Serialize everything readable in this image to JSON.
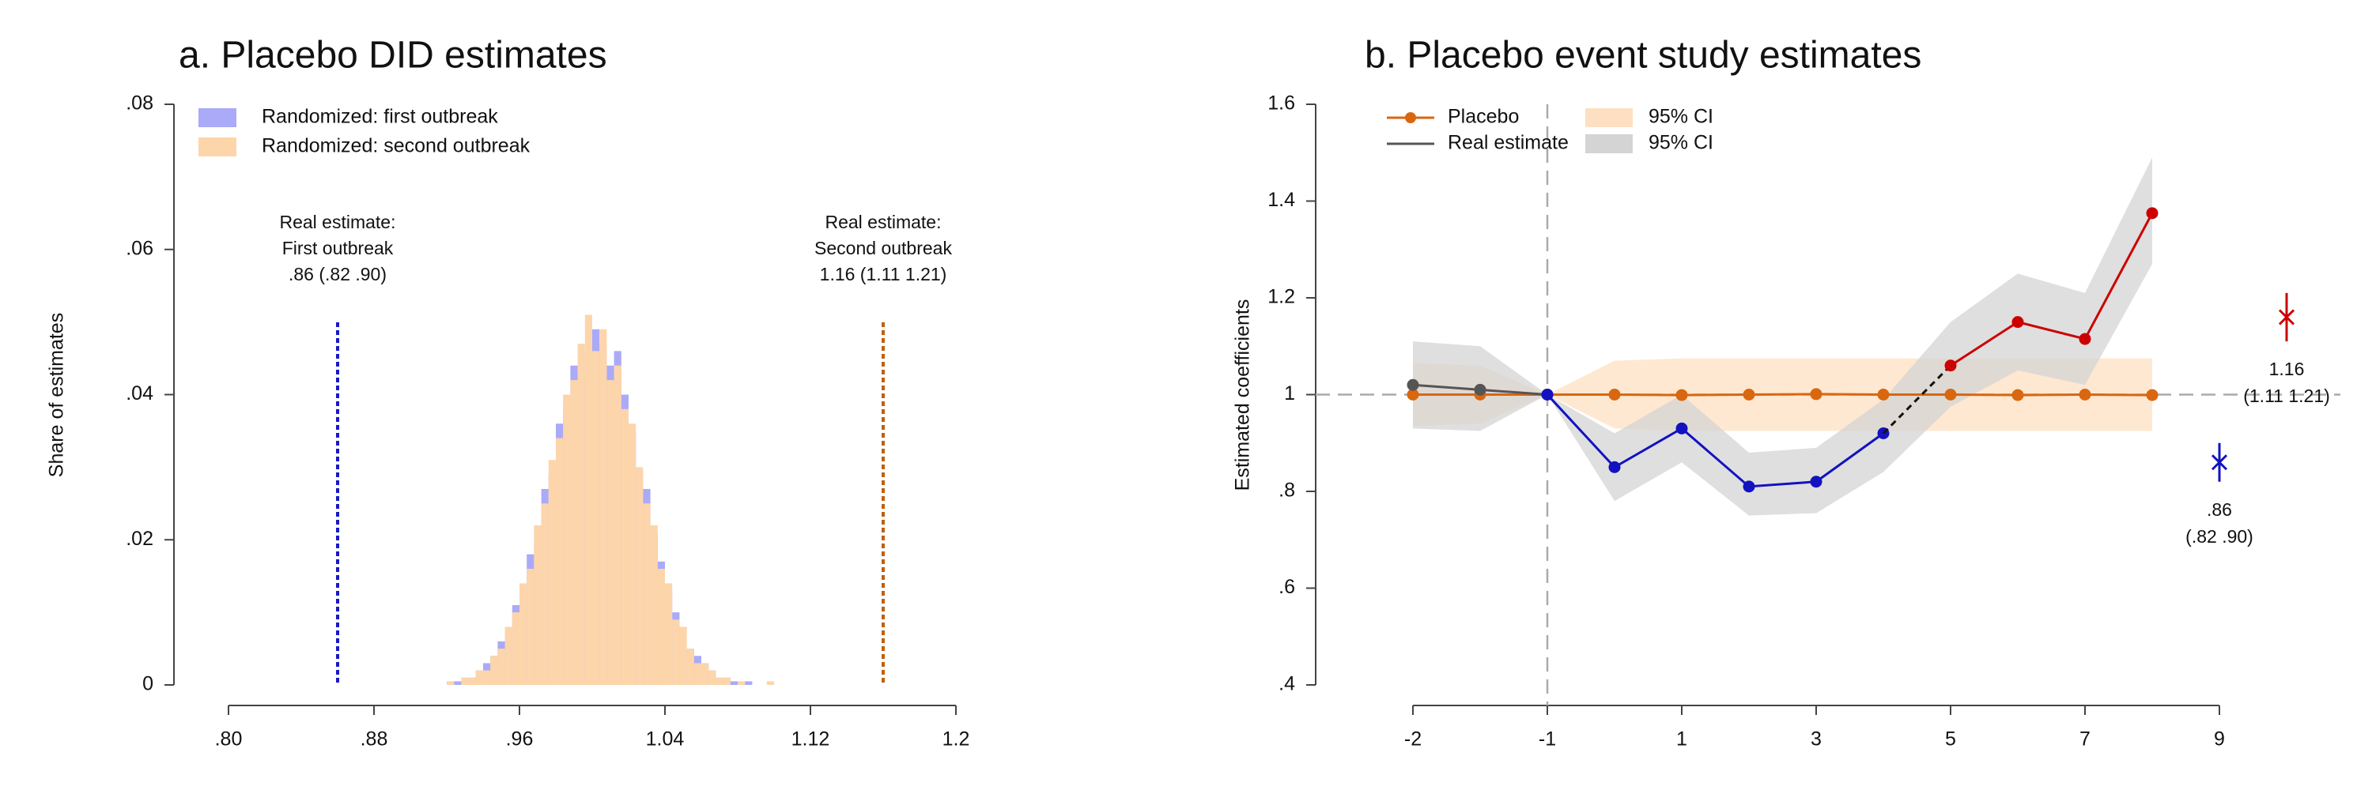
{
  "chart_data": [
    {
      "type": "histogram",
      "title": "a. Placebo DID estimates",
      "ylabel": "Share of estimates",
      "bins": [
        0.92,
        0.924,
        0.928,
        0.932,
        0.936,
        0.94,
        0.944,
        0.948,
        0.952,
        0.956,
        0.96,
        0.964,
        0.968,
        0.972,
        0.976,
        0.98,
        0.984,
        0.988,
        0.992,
        0.996,
        1.0,
        1.004,
        1.008,
        1.012,
        1.016,
        1.02,
        1.024,
        1.028,
        1.032,
        1.036,
        1.04,
        1.044,
        1.048,
        1.052,
        1.056,
        1.06,
        1.064,
        1.068,
        1.072,
        1.076,
        1.08,
        1.084,
        1.088,
        1.092,
        1.096,
        1.1,
        1.104
      ],
      "series": [
        {
          "name": "Randomized: first outbreak",
          "color": "#aaaaf8",
          "values": [
            0,
            0.0005,
            0.001,
            0.001,
            0.002,
            0.003,
            0.004,
            0.006,
            0.007,
            0.011,
            0.012,
            0.018,
            0.02,
            0.027,
            0.029,
            0.036,
            0.038,
            0.044,
            0.043,
            0.046,
            0.049,
            0.047,
            0.044,
            0.046,
            0.04,
            0.035,
            0.029,
            0.027,
            0.021,
            0.017,
            0.013,
            0.01,
            0.008,
            0.005,
            0.004,
            0.003,
            0.002,
            0.001,
            0.001,
            0.0005,
            0,
            0.0005,
            0,
            0,
            0,
            0
          ]
        },
        {
          "name": "Randomized: second outbreak",
          "color": "#fdd5ab",
          "values": [
            0.0005,
            0,
            0.001,
            0.001,
            0.002,
            0.002,
            0.004,
            0.005,
            0.008,
            0.01,
            0.014,
            0.016,
            0.022,
            0.025,
            0.031,
            0.034,
            0.04,
            0.042,
            0.047,
            0.051,
            0.046,
            0.049,
            0.042,
            0.044,
            0.038,
            0.036,
            0.03,
            0.025,
            0.022,
            0.016,
            0.014,
            0.009,
            0.008,
            0.005,
            0.003,
            0.003,
            0.002,
            0.001,
            0.001,
            0,
            0.0005,
            0,
            0,
            0,
            0.0005,
            0
          ]
        }
      ],
      "xlim": [
        0.8,
        1.2
      ],
      "xticks": [
        {
          "value": 0.8,
          "label": ".80"
        },
        {
          "value": 0.88,
          "label": ".88"
        },
        {
          "value": 0.96,
          "label": ".96"
        },
        1.04,
        1.12,
        1.2
      ],
      "ylim": [
        0,
        0.08
      ],
      "yticks": [
        0,
        {
          "value": 0.02,
          "label": ".02"
        },
        {
          "value": 0.04,
          "label": ".04"
        },
        {
          "value": 0.06,
          "label": ".06"
        },
        {
          "value": 0.08,
          "label": ".08"
        }
      ],
      "legend": "top-left",
      "ref_lines": [
        {
          "value": 0.86,
          "color": "#1818c8",
          "label": [
            "Real estimate:",
            "First outbreak",
            ".86 (.82 .90)"
          ]
        },
        {
          "value": 1.16,
          "color": "#c0600c",
          "label": [
            "Real estimate:",
            "Second outbreak",
            "1.16 (1.11 1.21)"
          ]
        }
      ]
    },
    {
      "type": "line",
      "title": "b. Placebo event study estimates",
      "ylabel": "Estimated coefficients",
      "categories": [
        "-2",
        null,
        "-1",
        null,
        "1",
        null,
        "3",
        null,
        "5",
        null,
        "7",
        null,
        "9",
        null
      ],
      "ylim": [
        0.4,
        1.6
      ],
      "yticks": [
        {
          "value": 0.4,
          "label": ".4"
        },
        {
          "value": 0.6,
          "label": ".6"
        },
        {
          "value": 0.8,
          "label": ".8"
        },
        1,
        1.2,
        1.4,
        1.6
      ],
      "hline": 1,
      "vline": "-1",
      "legend": "top-left",
      "series": [
        {
          "name": "Placebo",
          "color": "#d9670f",
          "values": [
            1,
            1,
            1,
            1,
            0.999,
            1,
            1.001,
            1,
            1,
            0.999,
            1,
            0.999,
            null,
            null
          ],
          "ci_name": "95% CI",
          "ci_color": "#fde0c2",
          "ci_lower": [
            0.935,
            0.94,
            1,
            0.93,
            0.925,
            0.925,
            0.925,
            0.925,
            0.925,
            0.925,
            0.925,
            0.925,
            null,
            null
          ],
          "ci_upper": [
            1.065,
            1.06,
            1,
            1.07,
            1.075,
            1.075,
            1.075,
            1.075,
            1.075,
            1.075,
            1.075,
            1.075,
            null,
            null
          ]
        },
        {
          "name": "Real estimate",
          "color": "#555555",
          "values": [
            1.02,
            1.01,
            1,
            null,
            null,
            null,
            null,
            null,
            null,
            null,
            null,
            null,
            null,
            null
          ],
          "ci_name": "95% CI",
          "ci_color": "#d4d4d4",
          "ci_lower": [
            0.93,
            0.925,
            1,
            0.78,
            0.86,
            0.75,
            0.755,
            0.84,
            0.975,
            1.05,
            1.02,
            1.27,
            null,
            null
          ],
          "ci_upper": [
            1.11,
            1.1,
            1,
            0.92,
            1.0,
            0.88,
            0.89,
            0.99,
            1.15,
            1.25,
            1.21,
            1.49,
            null,
            null
          ]
        },
        {
          "color": "#1212c0",
          "values": [
            null,
            null,
            1,
            0.85,
            0.93,
            0.81,
            0.82,
            0.92,
            null,
            null,
            null,
            null,
            null,
            null
          ]
        },
        {
          "color": "#cc0000",
          "connect_previous": true,
          "values": [
            null,
            null,
            null,
            null,
            null,
            null,
            null,
            null,
            1.06,
            1.15,
            1.115,
            1.375,
            null,
            null
          ]
        }
      ],
      "estimates": [
        {
          "color": "#1212c0",
          "values": [
            null,
            null,
            null,
            null,
            null,
            null,
            null,
            null,
            null,
            null,
            null,
            null,
            0.86,
            null
          ],
          "lower": [
            null,
            null,
            null,
            null,
            null,
            null,
            null,
            null,
            null,
            null,
            null,
            null,
            0.82,
            null
          ],
          "upper": [
            null,
            null,
            null,
            null,
            null,
            null,
            null,
            null,
            null,
            null,
            null,
            null,
            0.9,
            null
          ],
          "value_labels": [
            null,
            null,
            null,
            null,
            null,
            null,
            null,
            null,
            null,
            null,
            null,
            null,
            ".86",
            null
          ],
          "ci_labels": [
            null,
            null,
            null,
            null,
            null,
            null,
            null,
            null,
            null,
            null,
            null,
            null,
            "(.82 .90)",
            null
          ]
        },
        {
          "color": "#cc0000",
          "values": [
            null,
            null,
            null,
            null,
            null,
            null,
            null,
            null,
            null,
            null,
            null,
            null,
            null,
            1.16
          ],
          "lower": [
            null,
            null,
            null,
            null,
            null,
            null,
            null,
            null,
            null,
            null,
            null,
            null,
            null,
            1.11
          ],
          "upper": [
            null,
            null,
            null,
            null,
            null,
            null,
            null,
            null,
            null,
            null,
            null,
            null,
            null,
            1.21
          ],
          "value_labels": [
            null,
            null,
            null,
            null,
            null,
            null,
            null,
            null,
            null,
            null,
            null,
            null,
            null,
            "1.16"
          ],
          "ci_labels": [
            null,
            null,
            null,
            null,
            null,
            null,
            null,
            null,
            null,
            null,
            null,
            null,
            null,
            "(1.11 1.21)"
          ]
        }
      ]
    }
  ]
}
